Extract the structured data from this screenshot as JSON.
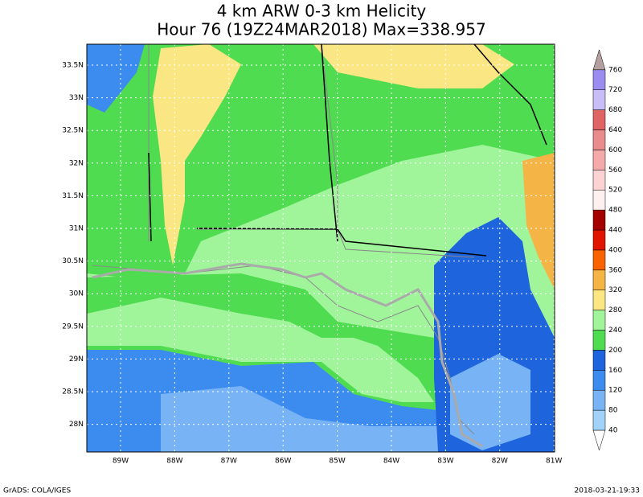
{
  "header": {
    "title": "4 km ARW 0-3 km Helicity",
    "subtitle": "Hour 76 (19Z24MAR2018) Max=338.957"
  },
  "map": {
    "lat_labels": [
      "33.5N",
      "33N",
      "32.5N",
      "32N",
      "31.5N",
      "31N",
      "30.5N",
      "30N",
      "29.5N",
      "29N",
      "28.5N",
      "28N"
    ],
    "lon_labels": [
      "89W",
      "88W",
      "87W",
      "86W",
      "85W",
      "84W",
      "83W",
      "82W",
      "81W"
    ]
  },
  "colorbar": {
    "levels": [
      40,
      80,
      120,
      160,
      200,
      240,
      280,
      320,
      360,
      400,
      440,
      480,
      520,
      560,
      600,
      640,
      680,
      720,
      760
    ],
    "colors": [
      "#ffffff",
      "#a0d2fa",
      "#78b4f5",
      "#3c8cf0",
      "#1e64dc",
      "#50dc50",
      "#a0f59b",
      "#fae682",
      "#f5b446",
      "#fa6400",
      "#e11400",
      "#a50000",
      "#fff0f0",
      "#fcd2d2",
      "#f5aaaa",
      "#eb8c8c",
      "#e06464",
      "#c8bef5",
      "#9b8cf0",
      "#5a50d2",
      "#b4a0a0"
    ]
  },
  "footer": {
    "left": "GrADS: COLA/IGES",
    "right": "2018-03-21-19:33"
  }
}
